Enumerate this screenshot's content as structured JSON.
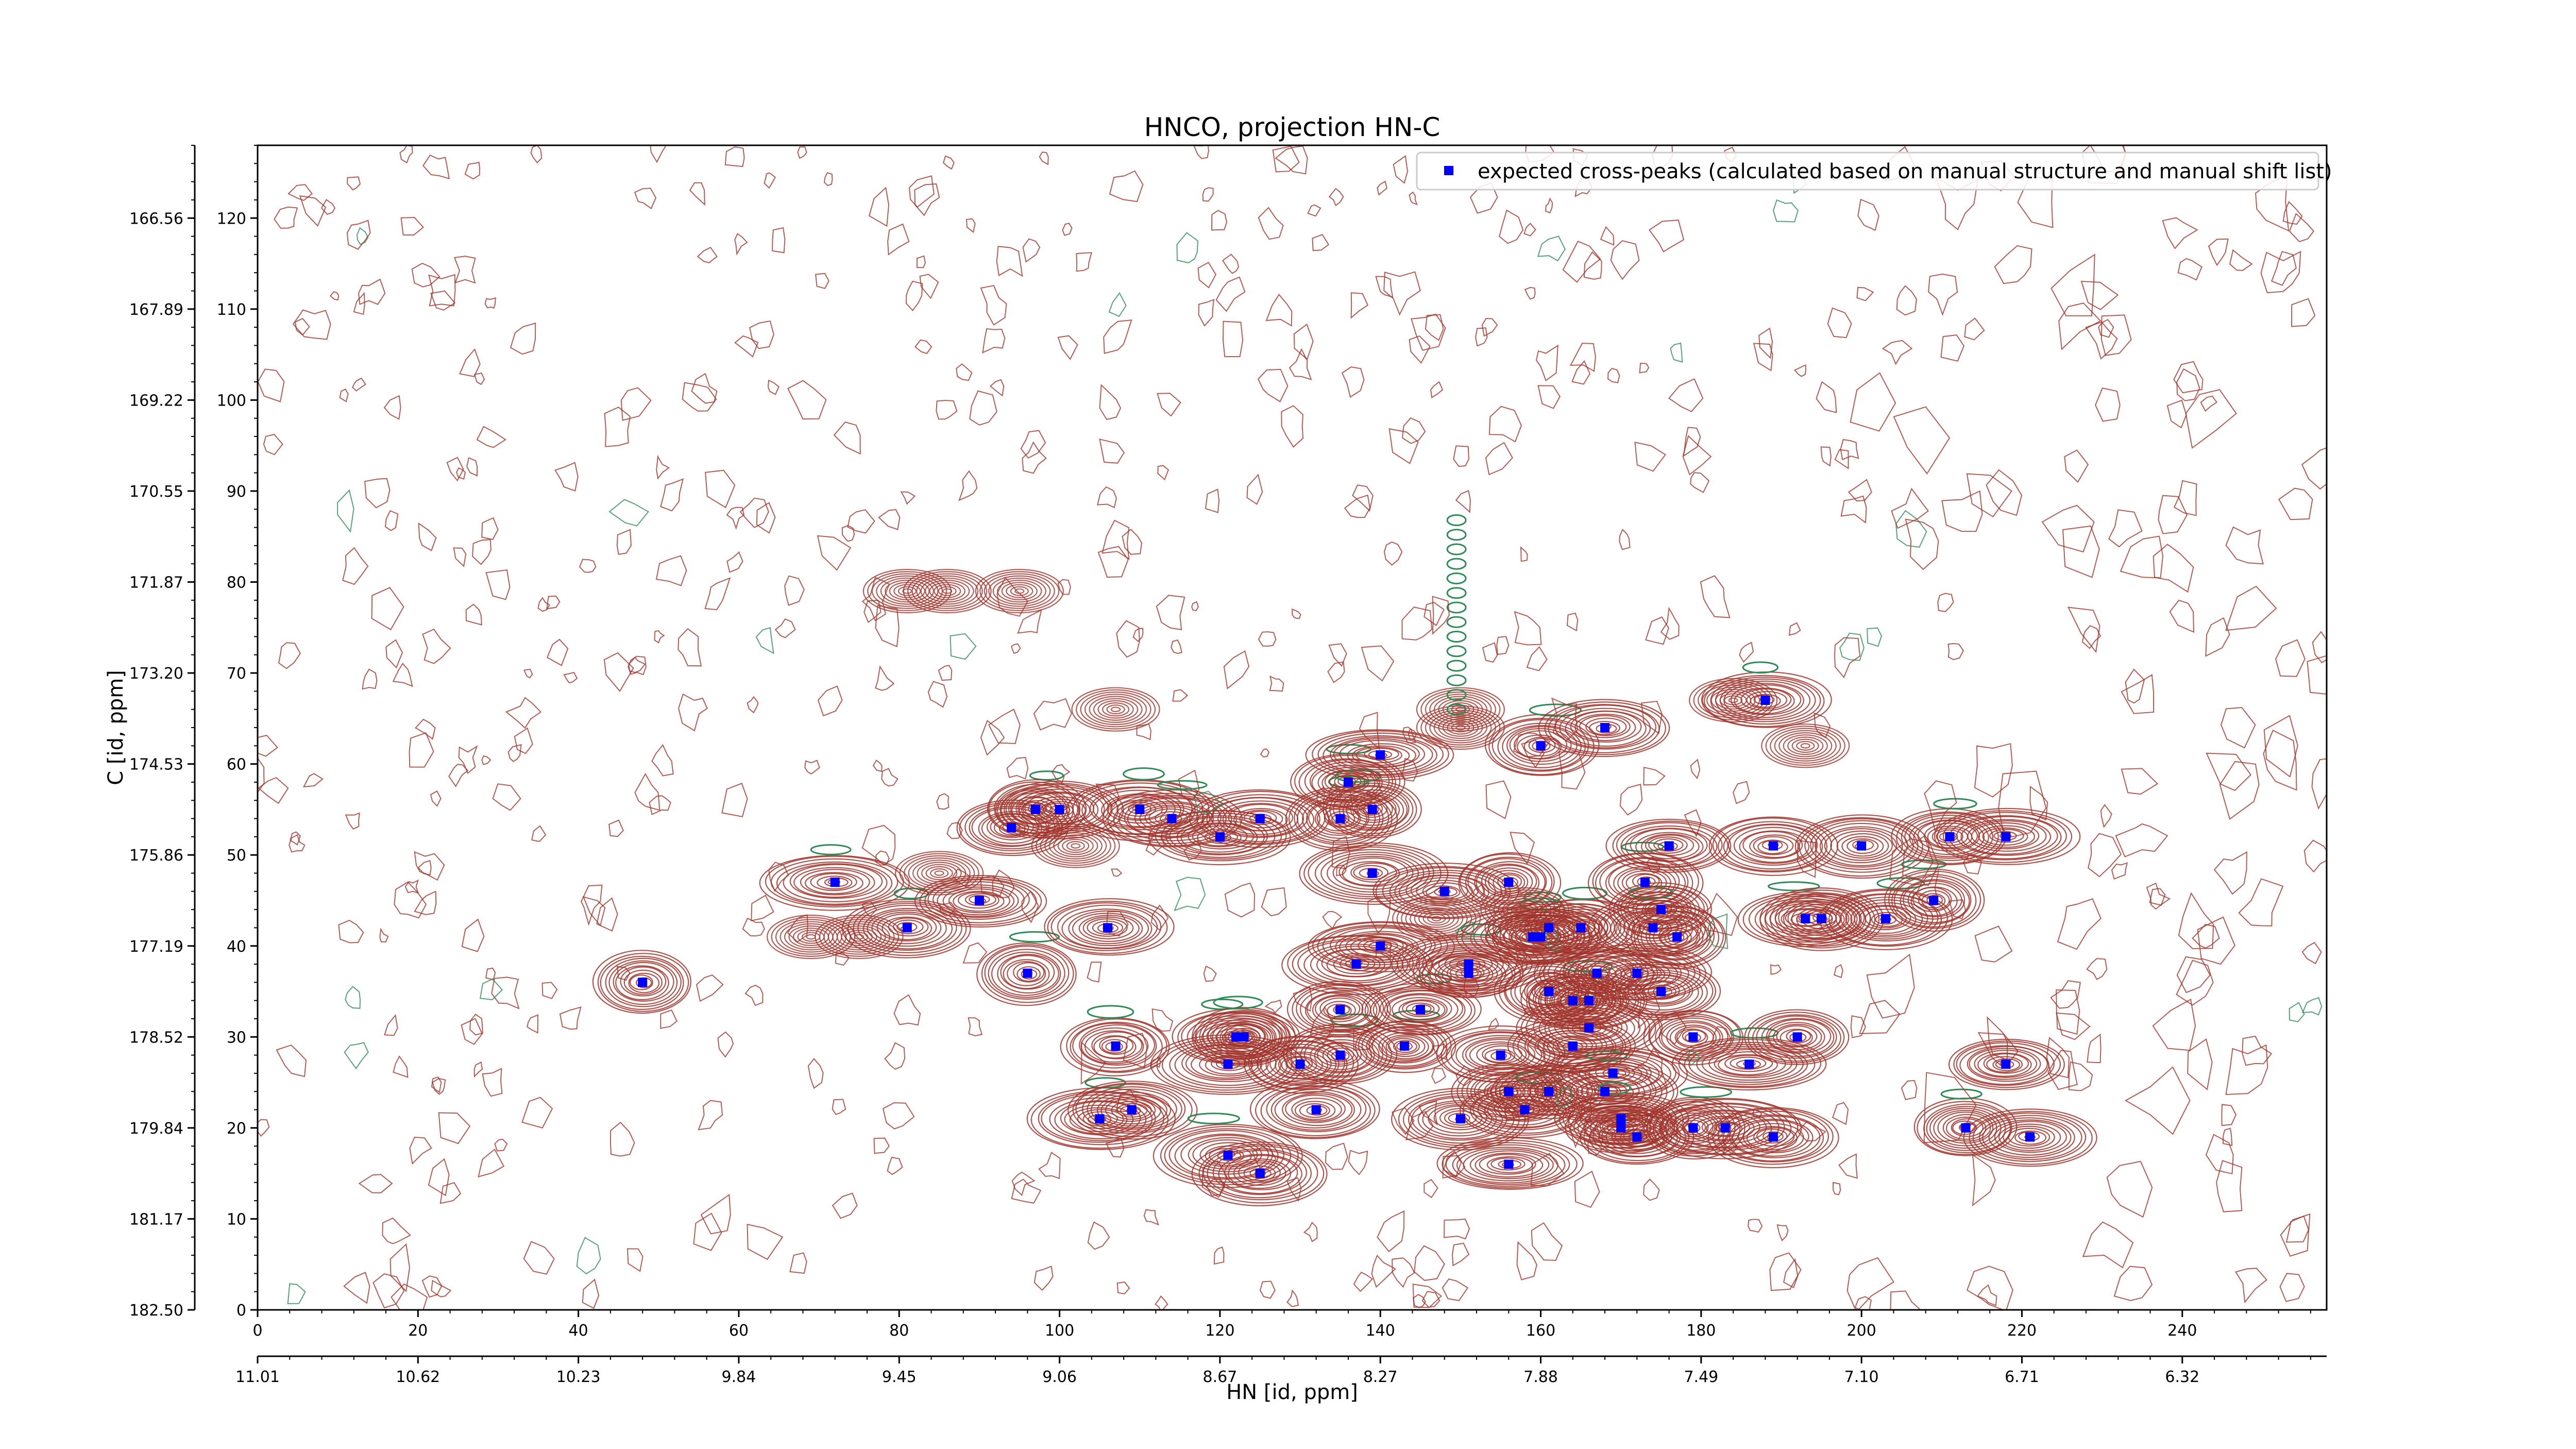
{
  "chart_data": {
    "type": "scatter",
    "title": "HNCO, projection HN-C",
    "xlabel": "HN [id, ppm]",
    "ylabel": "C [id, ppm]",
    "xlim": [
      0,
      258
    ],
    "ylim": [
      0,
      128
    ],
    "x_ticks": [
      "0",
      "20",
      "40",
      "60",
      "80",
      "100",
      "120",
      "140",
      "160",
      "180",
      "200",
      "220",
      "240"
    ],
    "x_ticks_secondary": [
      "11.01",
      "10.62",
      "10.23",
      "9.84",
      "9.45",
      "9.06",
      "8.67",
      "8.27",
      "7.88",
      "7.49",
      "7.10",
      "6.71",
      "6.32"
    ],
    "y_ticks": [
      "0",
      "10",
      "20",
      "30",
      "40",
      "50",
      "60",
      "70",
      "80",
      "90",
      "100",
      "110",
      "120"
    ],
    "y_ticks_secondary": [
      "182.50",
      "181.17",
      "179.84",
      "178.52",
      "177.19",
      "175.86",
      "174.53",
      "173.20",
      "171.87",
      "170.55",
      "169.22",
      "167.89",
      "166.56"
    ],
    "legend": {
      "label": "expected cross-peaks (calculated based on manual structure and manual shift list)",
      "position": "top-right"
    },
    "grid": false,
    "series": [
      {
        "name": "expected cross-peaks (calculated based on manual structure and manual shift list)",
        "color": "#0000ff",
        "points": [
          [
            48,
            36
          ],
          [
            72,
            47
          ],
          [
            81,
            42
          ],
          [
            90,
            45
          ],
          [
            96,
            37
          ],
          [
            94,
            53
          ],
          [
            100,
            55
          ],
          [
            97,
            55
          ],
          [
            106,
            42
          ],
          [
            105,
            21
          ],
          [
            107,
            29
          ],
          [
            109,
            22
          ],
          [
            110,
            55
          ],
          [
            114,
            54
          ],
          [
            120,
            52
          ],
          [
            121,
            27
          ],
          [
            122,
            30
          ],
          [
            123,
            30
          ],
          [
            125,
            54
          ],
          [
            125,
            15
          ],
          [
            121,
            17
          ],
          [
            130,
            27
          ],
          [
            132,
            22
          ],
          [
            135,
            28
          ],
          [
            135,
            54
          ],
          [
            135,
            33
          ],
          [
            136,
            58
          ],
          [
            137,
            38
          ],
          [
            139,
            55
          ],
          [
            139,
            48
          ],
          [
            140,
            40
          ],
          [
            140,
            61
          ],
          [
            143,
            29
          ],
          [
            145,
            33
          ],
          [
            148,
            46
          ],
          [
            150,
            21
          ],
          [
            151,
            37
          ],
          [
            151,
            38
          ],
          [
            155,
            28
          ],
          [
            156,
            24
          ],
          [
            156,
            47
          ],
          [
            156,
            16
          ],
          [
            158,
            22
          ],
          [
            159,
            41
          ],
          [
            160,
            41
          ],
          [
            160,
            62
          ],
          [
            161,
            35
          ],
          [
            161,
            24
          ],
          [
            161,
            42
          ],
          [
            164,
            29
          ],
          [
            164,
            34
          ],
          [
            165,
            42
          ],
          [
            166,
            34
          ],
          [
            166,
            31
          ],
          [
            167,
            37
          ],
          [
            168,
            24
          ],
          [
            168,
            64
          ],
          [
            169,
            26
          ],
          [
            170,
            21
          ],
          [
            170,
            20
          ],
          [
            172,
            19
          ],
          [
            172,
            37
          ],
          [
            173,
            47
          ],
          [
            174,
            42
          ],
          [
            175,
            35
          ],
          [
            175,
            44
          ],
          [
            176,
            51
          ],
          [
            177,
            41
          ],
          [
            179,
            30
          ],
          [
            179,
            20
          ],
          [
            183,
            20
          ],
          [
            186,
            27
          ],
          [
            188,
            67
          ],
          [
            189,
            19
          ],
          [
            189,
            51
          ],
          [
            192,
            30
          ],
          [
            193,
            43
          ],
          [
            195,
            43
          ],
          [
            200,
            51
          ],
          [
            203,
            43
          ],
          [
            209,
            45
          ],
          [
            211,
            52
          ],
          [
            213,
            20
          ],
          [
            218,
            52
          ],
          [
            218,
            27
          ],
          [
            221,
            19
          ]
        ]
      }
    ],
    "contour_colors": {
      "positive": "#a0342c",
      "negative": "#2e8b57"
    }
  }
}
